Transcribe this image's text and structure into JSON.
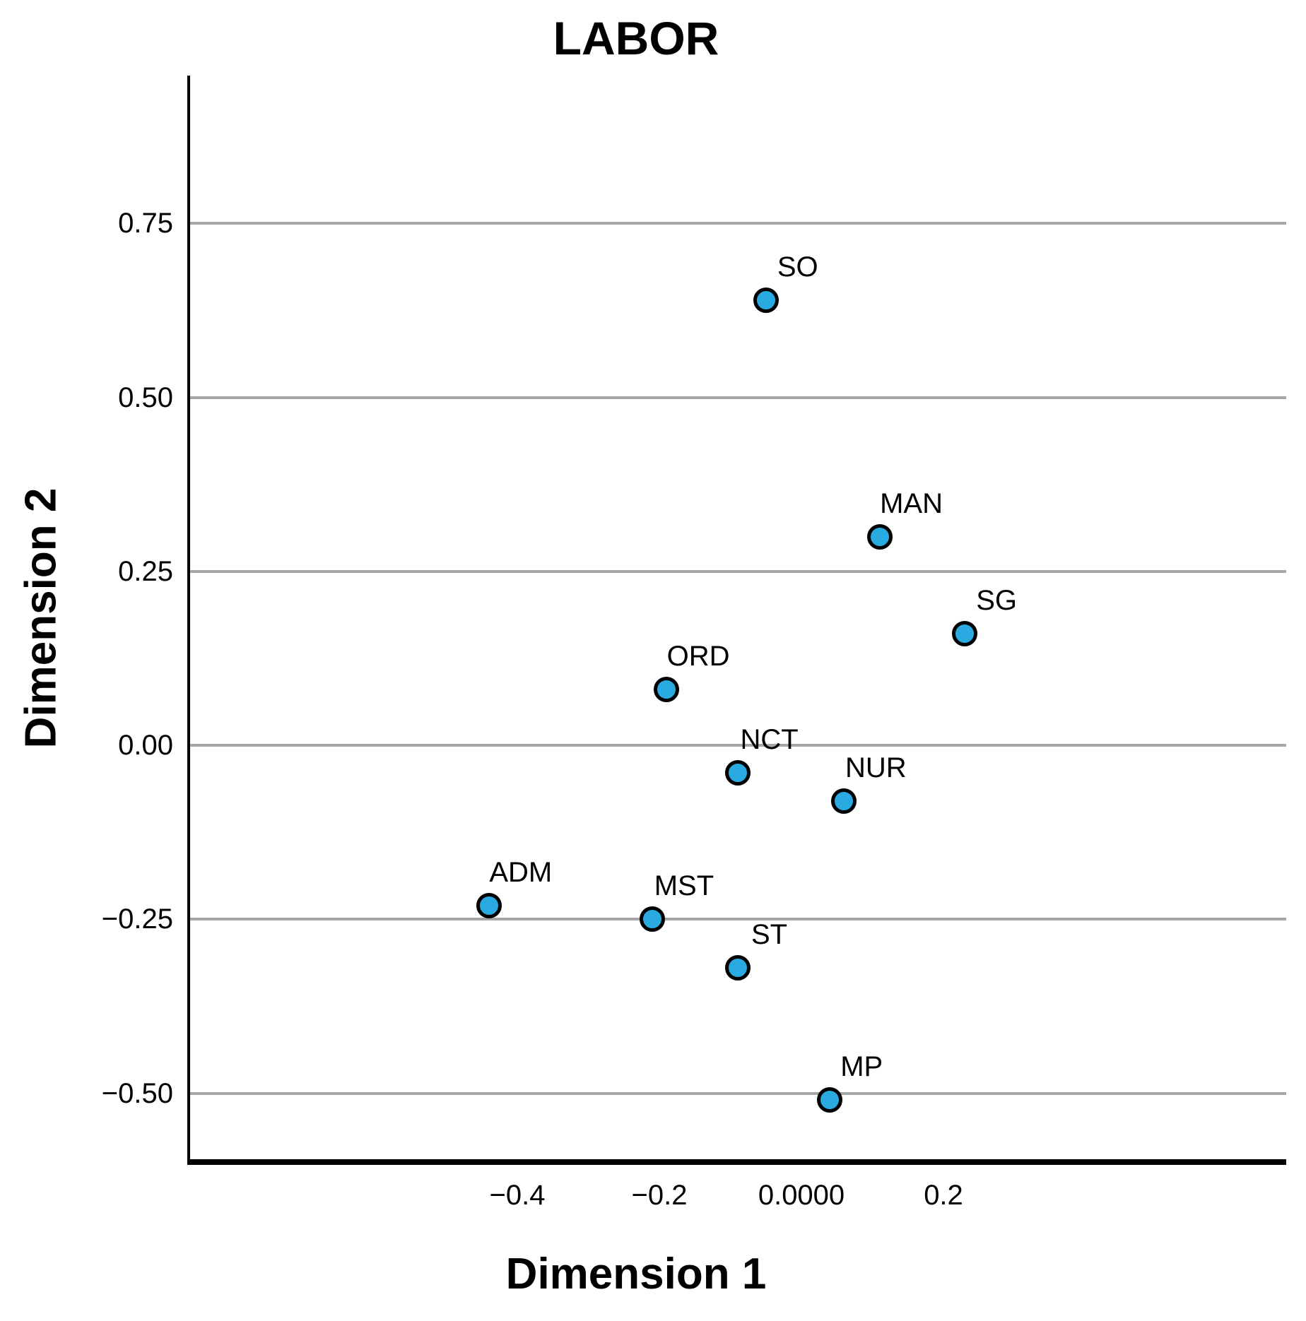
{
  "title": "LABOR",
  "chart_data": {
    "type": "scatter",
    "title": "LABOR",
    "xlabel": "Dimension 1",
    "ylabel": "Dimension 2",
    "xlim": [
      -0.86,
      0.68
    ],
    "ylim": [
      -0.6,
      0.96
    ],
    "grid": "horizontal-only",
    "legend": "none",
    "marker_color": "#29ABE2",
    "marker_edge_color": "#000000",
    "gridline_color": "#A6A6A6",
    "axis_color": "#000000",
    "x_ticks": [
      {
        "value": -0.4,
        "label": "−0.4"
      },
      {
        "value": -0.2,
        "label": "−0.2"
      },
      {
        "value": 0.0,
        "label": "0.0000"
      },
      {
        "value": 0.2,
        "label": "0.2"
      }
    ],
    "y_ticks": [
      {
        "value": 0.75,
        "label": "0.75"
      },
      {
        "value": 0.5,
        "label": "0.50"
      },
      {
        "value": 0.25,
        "label": "0.25"
      },
      {
        "value": 0.0,
        "label": "0.00"
      },
      {
        "value": -0.25,
        "label": "−0.25"
      },
      {
        "value": -0.5,
        "label": "−0.50"
      }
    ],
    "points": [
      {
        "label": "SO",
        "x": -0.05,
        "y": 0.64
      },
      {
        "label": "MAN",
        "x": 0.11,
        "y": 0.3
      },
      {
        "label": "SG",
        "x": 0.23,
        "y": 0.16
      },
      {
        "label": "ORD",
        "x": -0.19,
        "y": 0.08
      },
      {
        "label": "NCT",
        "x": -0.09,
        "y": -0.04
      },
      {
        "label": "NUR",
        "x": 0.06,
        "y": -0.08
      },
      {
        "label": "ADM",
        "x": -0.44,
        "y": -0.23
      },
      {
        "label": "MST",
        "x": -0.21,
        "y": -0.25
      },
      {
        "label": "ST",
        "x": -0.09,
        "y": -0.32
      },
      {
        "label": "MP",
        "x": 0.04,
        "y": -0.51
      }
    ]
  }
}
